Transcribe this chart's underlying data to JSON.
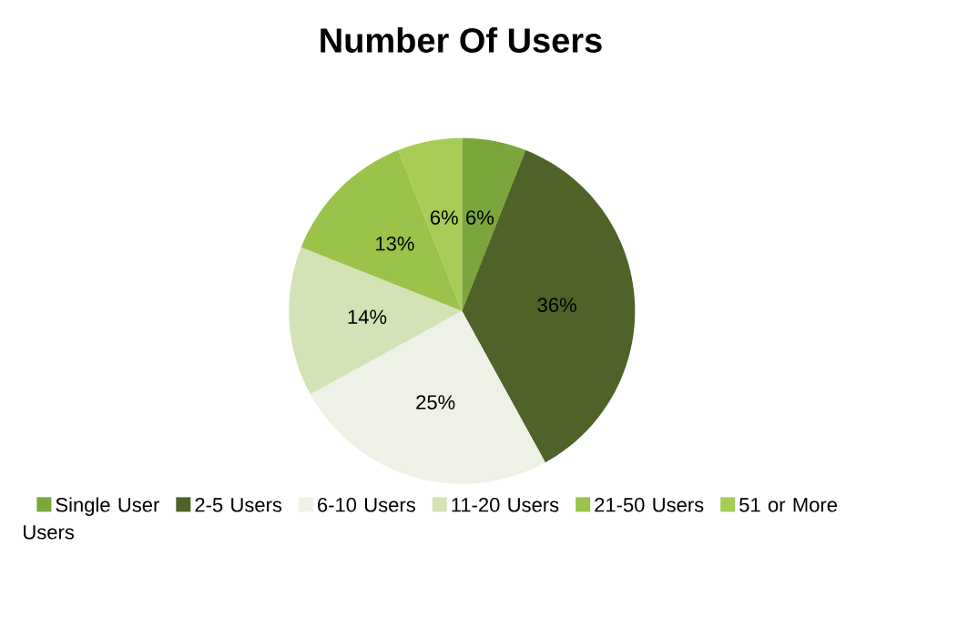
{
  "chart_data": {
    "type": "pie",
    "title": "Number Of Users",
    "categories": [
      "Single User",
      "2-5 Users",
      "6-10 Users",
      "11-20 Users",
      "21-50 Users",
      "51 or More Users"
    ],
    "values": [
      6,
      36,
      25,
      14,
      13,
      6
    ],
    "value_labels": [
      "6%",
      "36%",
      "25%",
      "14%",
      "13%",
      "6%"
    ],
    "colors": [
      "#7aa63c",
      "#4f6228",
      "#eef1e6",
      "#d4e3b5",
      "#9bc34a",
      "#a6cc55"
    ],
    "legend": "bottom"
  }
}
